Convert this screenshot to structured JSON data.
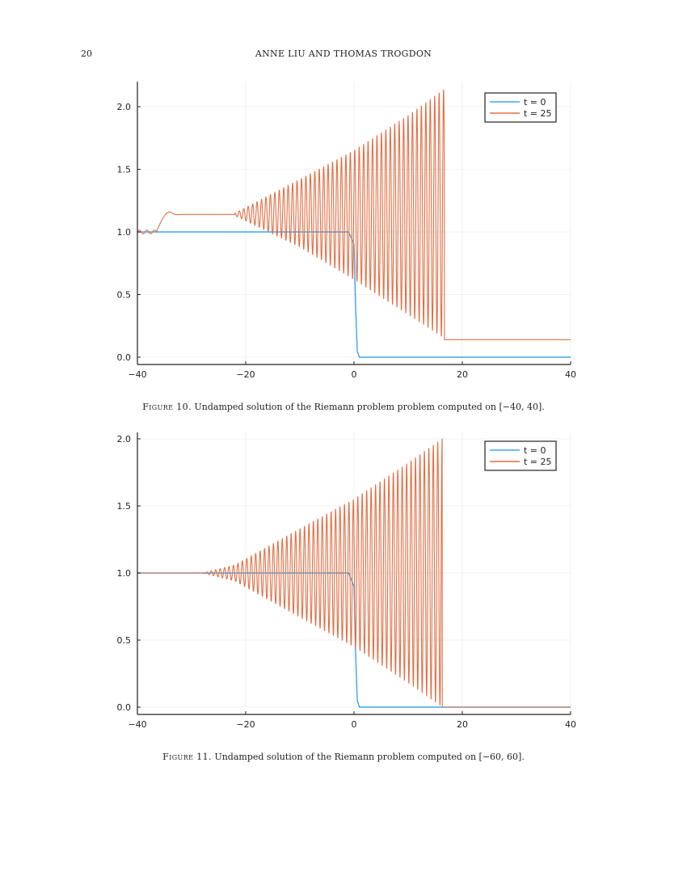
{
  "page": {
    "number": "20",
    "running_head": "ANNE LIU AND THOMAS TROGDON"
  },
  "figures": [
    {
      "label": "Figure 10.",
      "caption": "Undamped solution of the Riemann problem problem computed on [−40, 40]."
    },
    {
      "label": "Figure 11.",
      "caption": "Undamped solution of the Riemann problem computed on [−60, 60]."
    }
  ],
  "colors": {
    "series_t0": "#3da6e8",
    "series_t25": "#e26f45",
    "axis": "#222222",
    "grid": "#ececec"
  },
  "chart_data": [
    {
      "type": "line",
      "title": "",
      "xlabel": "",
      "ylabel": "",
      "xlim": [
        -40,
        40
      ],
      "ylim": [
        -0.05,
        2.2
      ],
      "xticks": [
        -40,
        -20,
        0,
        20,
        40
      ],
      "xtick_labels": [
        "−40",
        "−20",
        "0",
        "20",
        "40"
      ],
      "yticks": [
        0.0,
        0.5,
        1.0,
        1.5,
        2.0
      ],
      "ytick_labels": [
        "0.0",
        "0.5",
        "1.0",
        "1.5",
        "2.0"
      ],
      "grid": true,
      "legend_position": "top-right",
      "series": [
        {
          "name": "t = 0",
          "description": "smoothed step: 1.0 for x < 0, drops to 0.0 at x ≈ 0.5",
          "points": [
            [
              -40,
              1.0
            ],
            [
              -1,
              1.0
            ],
            [
              0,
              0.9
            ],
            [
              0.3,
              0.4
            ],
            [
              0.6,
              0.05
            ],
            [
              1,
              0.0
            ],
            [
              40,
              0.0
            ]
          ]
        },
        {
          "name": "t = 25",
          "description": "dispersive shock wave; small ripples near x=-40, bump to ~1.16 at x≈-34, plateau ~1.14 from -32 to -22, oscillation envelope widens until x≈16.7 (max ≈2.14, min ≈0.15), then flat ≈0.14",
          "left_ripple": {
            "x_from": -40,
            "x_to": -36.5,
            "level": 1.0,
            "amplitude": 0.015
          },
          "bump": {
            "x_peak": -34,
            "y_peak": 1.16
          },
          "plateau": {
            "x_from": -32,
            "x_to": -22,
            "level": 1.14
          },
          "envelope_upper": [
            [
              -22,
              1.15
            ],
            [
              -10,
              1.42
            ],
            [
              0,
              1.65
            ],
            [
              10,
              1.93
            ],
            [
              16.7,
              2.14
            ]
          ],
          "envelope_lower": [
            [
              -22,
              1.13
            ],
            [
              -10,
              0.88
            ],
            [
              0,
              0.62
            ],
            [
              10,
              0.34
            ],
            [
              16.7,
              0.15
            ]
          ],
          "shock_x": 16.7,
          "right_level": 0.14
        }
      ]
    },
    {
      "type": "line",
      "title": "",
      "xlabel": "",
      "ylabel": "",
      "xlim": [
        -40,
        40
      ],
      "ylim": [
        -0.05,
        2.05
      ],
      "xticks": [
        -40,
        -20,
        0,
        20,
        40
      ],
      "xtick_labels": [
        "−40",
        "−20",
        "0",
        "20",
        "40"
      ],
      "yticks": [
        0.0,
        0.5,
        1.0,
        1.5,
        2.0
      ],
      "ytick_labels": [
        "0.0",
        "0.5",
        "1.0",
        "1.5",
        "2.0"
      ],
      "grid": true,
      "legend_position": "top-right",
      "series": [
        {
          "name": "t = 0",
          "description": "smoothed step: 1.0 for x < 0, drops to 0.0 at x ≈ 0.5",
          "points": [
            [
              -40,
              1.0
            ],
            [
              -1,
              1.0
            ],
            [
              0,
              0.9
            ],
            [
              0.3,
              0.4
            ],
            [
              0.6,
              0.05
            ],
            [
              1,
              0.0
            ],
            [
              40,
              0.0
            ]
          ]
        },
        {
          "name": "t = 25",
          "description": "dispersive shock wave; flat at 1.0 until x≈-30, envelope widens until x≈16.3 (max ≈2.0, min ≈0.0), then flat 0.0",
          "plateau": {
            "x_from": -40,
            "x_to": -28,
            "level": 1.0
          },
          "envelope_upper": [
            [
              -28,
              1.0
            ],
            [
              -22,
              1.06
            ],
            [
              -10,
              1.33
            ],
            [
              0,
              1.55
            ],
            [
              10,
              1.82
            ],
            [
              16.3,
              2.0
            ]
          ],
          "envelope_lower": [
            [
              -28,
              1.0
            ],
            [
              -22,
              0.94
            ],
            [
              -10,
              0.67
            ],
            [
              0,
              0.45
            ],
            [
              10,
              0.18
            ],
            [
              16.3,
              0.0
            ]
          ],
          "shock_x": 16.3,
          "right_level": 0.0
        }
      ]
    }
  ]
}
